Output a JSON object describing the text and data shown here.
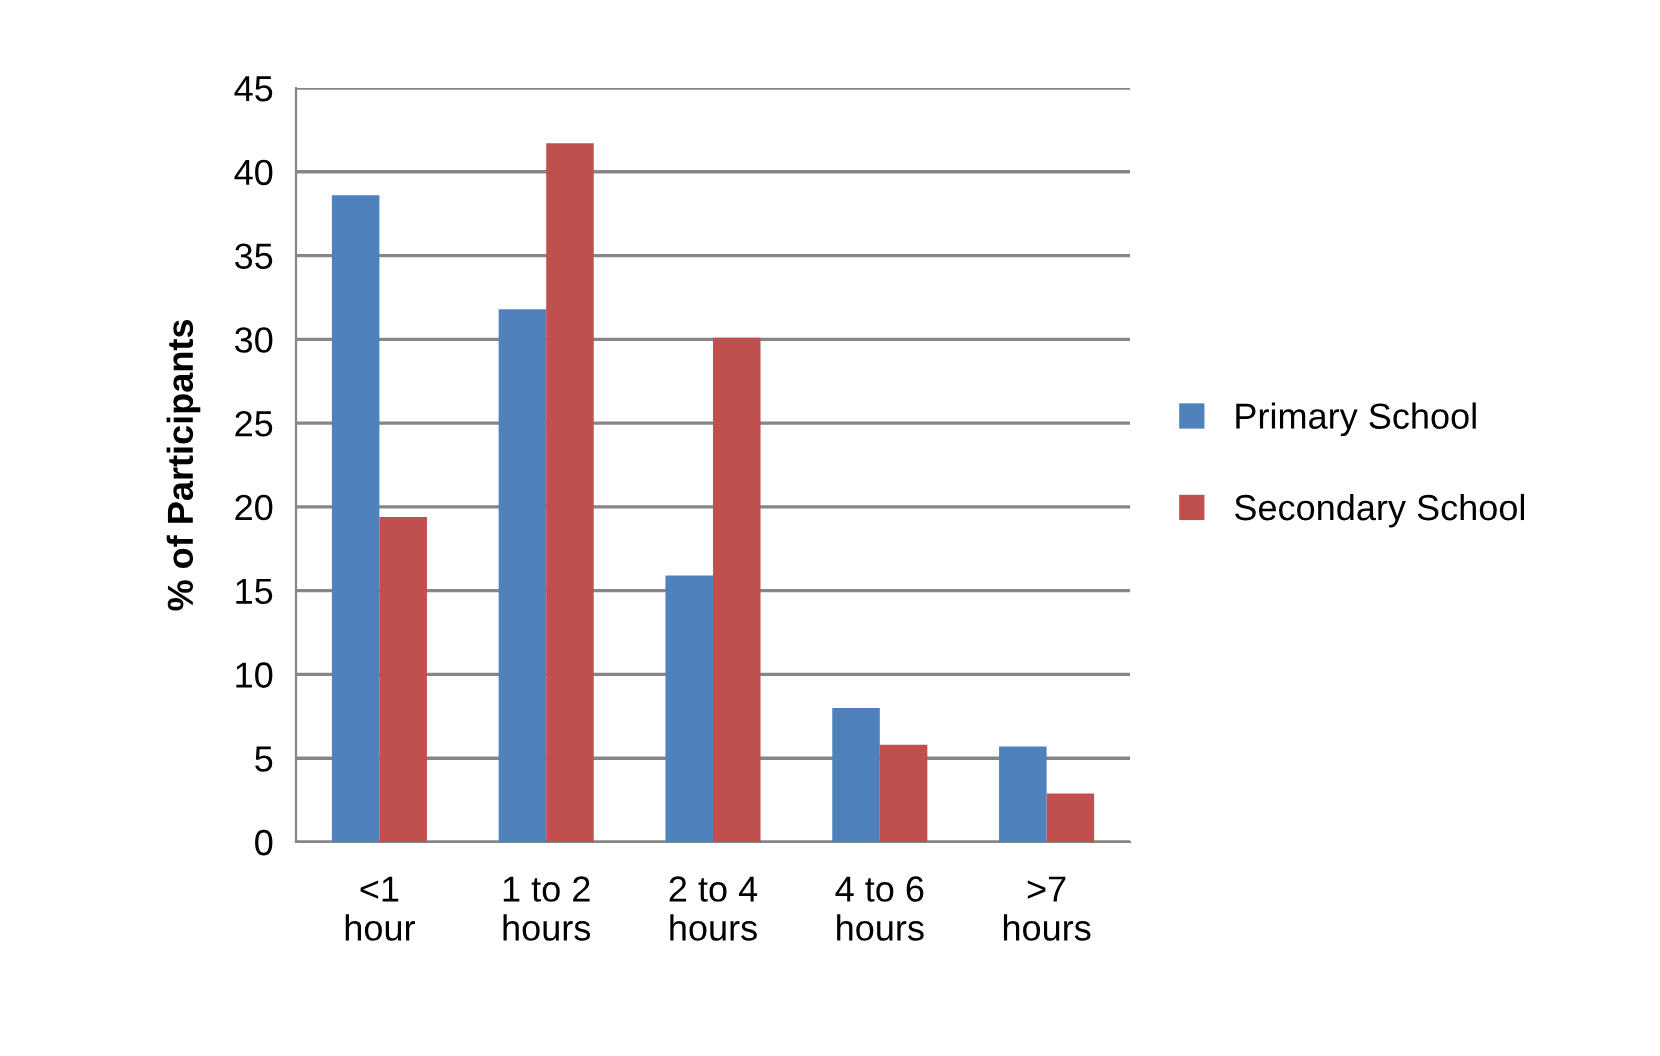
{
  "chart_data": {
    "type": "bar",
    "ylabel": "% of Participants",
    "categories": [
      "<1\nhour",
      "1 to 2\nhours",
      "2 to 4\nhours",
      "4 to 6\nhours",
      ">7\nhours"
    ],
    "series": [
      {
        "name": "Primary School",
        "color": "#4f81bd",
        "values": [
          38.6,
          31.8,
          15.9,
          8.0,
          5.7
        ]
      },
      {
        "name": "Secondary School",
        "color": "#c0504d",
        "values": [
          19.4,
          41.7,
          30.1,
          5.8,
          2.9
        ]
      }
    ],
    "ylim": [
      0,
      45
    ],
    "yticks": [
      0,
      5,
      10,
      15,
      20,
      25,
      30,
      35,
      40,
      45
    ],
    "grid": "y",
    "legend": "right"
  }
}
